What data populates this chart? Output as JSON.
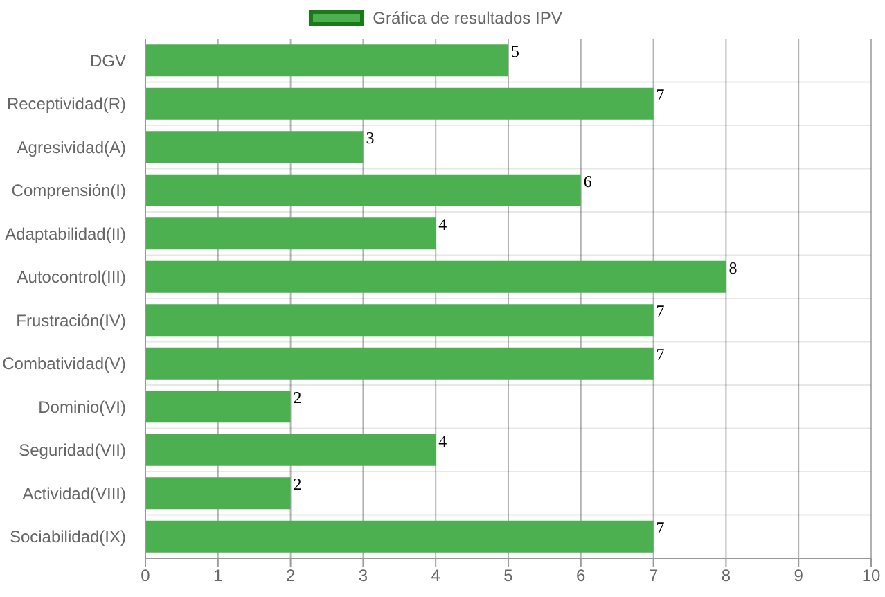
{
  "chart_data": {
    "type": "bar",
    "orientation": "horizontal",
    "categories": [
      "DGV",
      "Receptividad(R)",
      "Agresividad(A)",
      "Comprensión(I)",
      "Adaptabilidad(II)",
      "Autocontrol(III)",
      "Frustración(IV)",
      "Combatividad(V)",
      "Dominio(VI)",
      "Seguridad(VII)",
      "Actividad(VIII)",
      "Sociabilidad(IX)"
    ],
    "series": [
      {
        "name": "Gráfica de resultados IPV",
        "color": "#4caf50",
        "values": [
          5,
          7,
          3,
          6,
          4,
          8,
          7,
          7,
          2,
          4,
          2,
          7
        ]
      }
    ],
    "xlim": [
      0,
      10
    ],
    "xticks": [
      0,
      1,
      2,
      3,
      4,
      5,
      6,
      7,
      8,
      9,
      10
    ],
    "grid": true,
    "legend": "top",
    "data_labels": true
  }
}
